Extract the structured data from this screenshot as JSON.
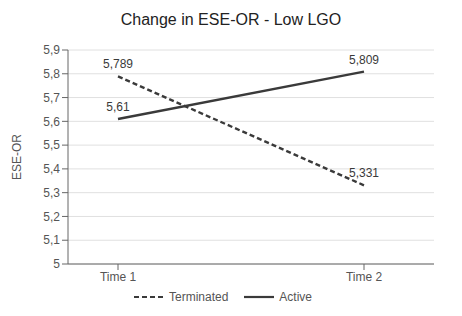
{
  "chart_data": {
    "type": "line",
    "title": "Change in ESE-OR - Low LGO",
    "ylabel": "ESE-OR",
    "categories": [
      "Time 1",
      "Time 2"
    ],
    "series": [
      {
        "name": "Terminated",
        "color": "#3a3a3a",
        "line_style": "dashed",
        "values": [
          5.789,
          5.331
        ],
        "value_labels": [
          "5,789",
          "5,331"
        ]
      },
      {
        "name": "Active",
        "color": "#3a3a3a",
        "line_style": "solid",
        "values": [
          5.61,
          5.809
        ],
        "value_labels": [
          "5,61",
          "5,809"
        ]
      }
    ],
    "ylim": [
      5.0,
      5.9
    ],
    "yticks": [
      5,
      {
        "value": 5.1,
        "label": "5,1"
      },
      {
        "value": 5.2,
        "label": "5,2"
      },
      {
        "value": 5.3,
        "label": "5,3"
      },
      {
        "value": 5.4,
        "label": "5,4"
      },
      {
        "value": 5.5,
        "label": "5,5"
      },
      {
        "value": 5.6,
        "label": "5,6"
      },
      {
        "value": 5.7,
        "label": "5,7"
      },
      {
        "value": 5.8,
        "label": "5,8"
      },
      {
        "value": 5.9,
        "label": "5,9"
      }
    ],
    "grid": true,
    "legend": "bottom",
    "data_labels": true
  }
}
